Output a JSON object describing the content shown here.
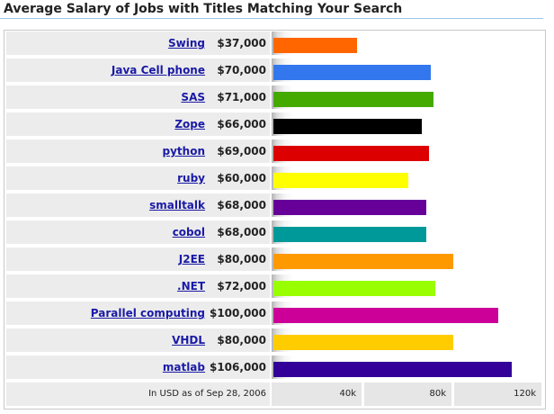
{
  "title": "Average Salary of Jobs with Titles Matching Your Search",
  "chart_data": {
    "type": "bar",
    "orientation": "horizontal",
    "categories": [
      "Swing",
      "Java Cell phone",
      "SAS",
      "Zope",
      "python",
      "ruby",
      "smalltalk",
      "cobol",
      "J2EE",
      ".NET",
      "Parallel computing",
      "VHDL",
      "matlab"
    ],
    "values": [
      37000,
      70000,
      71000,
      66000,
      69000,
      60000,
      68000,
      68000,
      80000,
      72000,
      100000,
      80000,
      106000
    ],
    "value_labels": [
      "$37,000",
      "$70,000",
      "$71,000",
      "$66,000",
      "$69,000",
      "$60,000",
      "$68,000",
      "$68,000",
      "$80,000",
      "$72,000",
      "$100,000",
      "$80,000",
      "$106,000"
    ],
    "colors": [
      "#ff6600",
      "#3377ee",
      "#44aa00",
      "#000000",
      "#dd0000",
      "#ffff00",
      "#660099",
      "#009999",
      "#ff9900",
      "#99ff00",
      "#cc0099",
      "#ffcc00",
      "#330099"
    ],
    "xlim": [
      0,
      120000
    ],
    "x_ticks": [
      40000,
      80000,
      120000
    ],
    "x_tick_labels": [
      "40k",
      "80k",
      "120k"
    ],
    "note": "In USD as of Sep 28, 2006",
    "grid": false,
    "legend": "none"
  }
}
